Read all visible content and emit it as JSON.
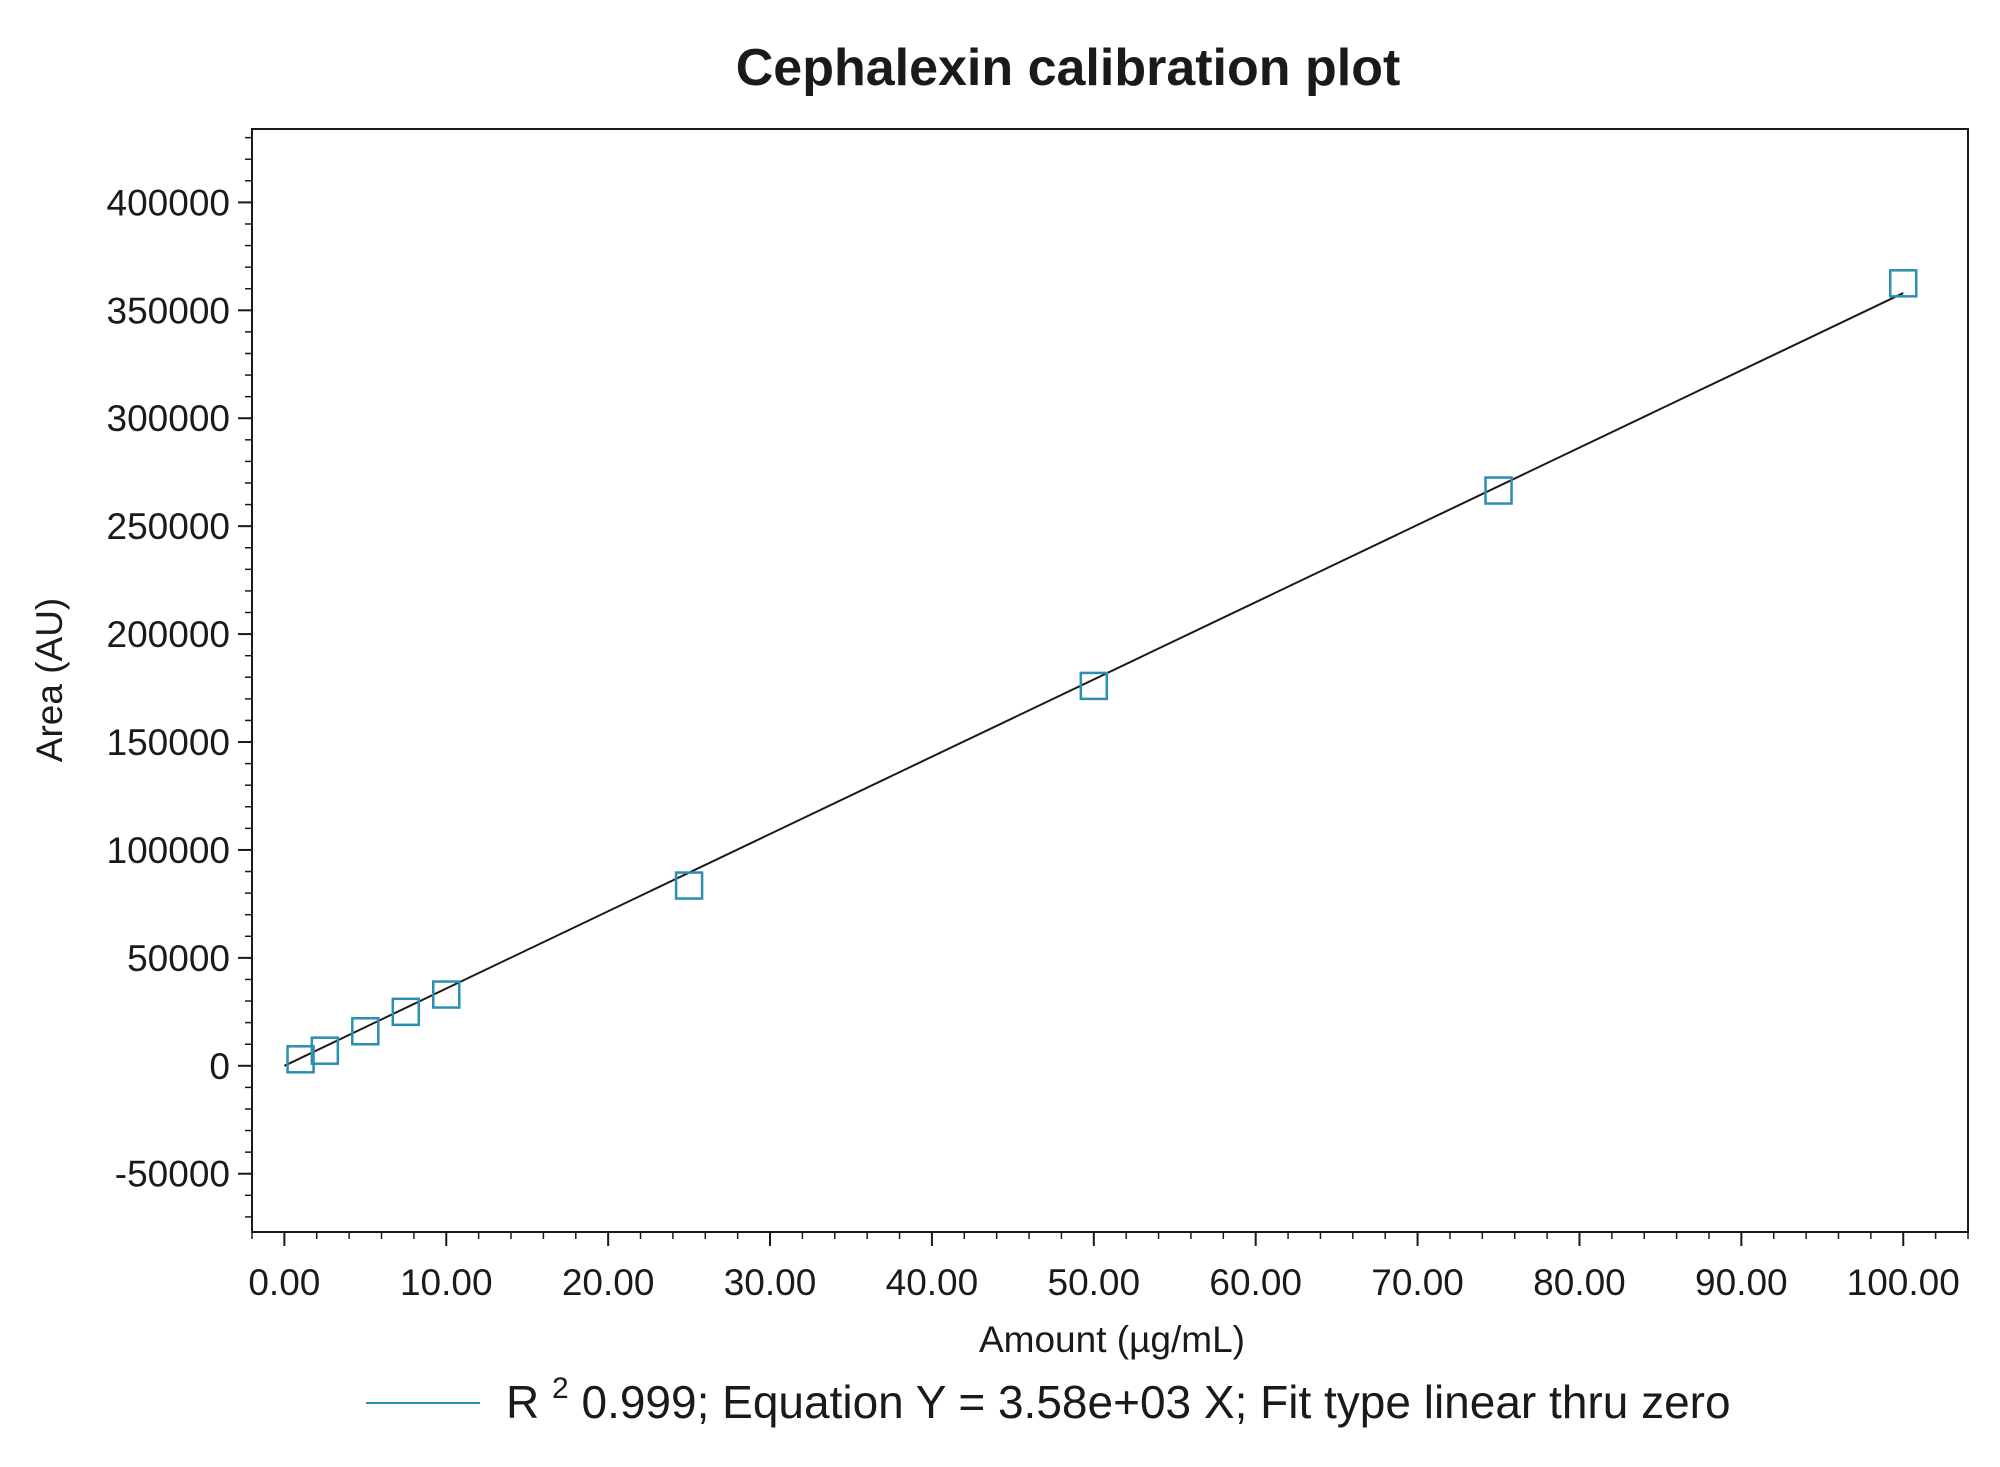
{
  "chart_data": {
    "type": "scatter",
    "title": "Cephalexin calibration plot",
    "xlabel": "Amount (µg/mL)",
    "ylabel": "Area (AU)",
    "xlim": [
      -2,
      104
    ],
    "ylim": [
      -77000,
      434000
    ],
    "x_ticks": [
      0,
      10,
      20,
      30,
      40,
      50,
      60,
      70,
      80,
      90,
      100
    ],
    "x_tick_labels": [
      "0.00",
      "10.00",
      "20.00",
      "30.00",
      "40.00",
      "50.00",
      "60.00",
      "70.00",
      "80.00",
      "90.00",
      "100.00"
    ],
    "y_ticks": [
      -50000,
      0,
      50000,
      100000,
      150000,
      200000,
      250000,
      300000,
      350000,
      400000
    ],
    "y_tick_labels": [
      "-50000",
      "0",
      "50000",
      "100000",
      "150000",
      "200000",
      "250000",
      "300000",
      "350000",
      "400000"
    ],
    "series": [
      {
        "kind": "points",
        "marker": "open-square",
        "color": "#2a8fb0",
        "x": [
          1,
          2.5,
          5,
          7.5,
          10,
          25,
          50,
          75,
          100
        ],
        "y": [
          3000,
          7000,
          16000,
          25000,
          33000,
          83500,
          176000,
          266500,
          362500
        ]
      },
      {
        "kind": "fit-line",
        "color": "#1a1a1a",
        "slope": 3580,
        "x_range": [
          0,
          100
        ]
      }
    ],
    "legend": {
      "position": "bottom-center",
      "line_color": "#2a8fb0",
      "r_label": "R",
      "r_superscript": "2",
      "text": " 0.999; Equation Y = 3.58e+03 X; Fit type linear thru zero"
    },
    "grid": false
  }
}
